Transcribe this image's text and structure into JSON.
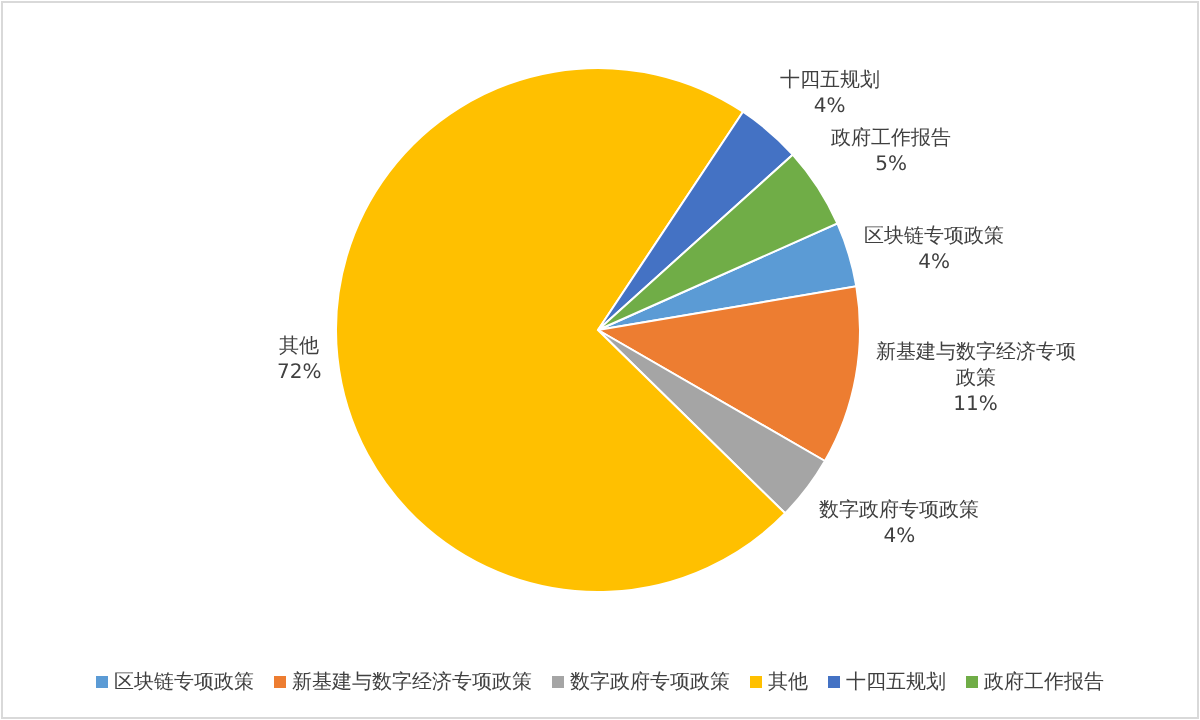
{
  "chart_data": {
    "type": "pie",
    "categories": [
      "区块链专项政策",
      "新基建与数字经济专项政策",
      "数字政府专项政策",
      "其他",
      "十四五规划",
      "政府工作报告"
    ],
    "values": [
      4,
      11,
      4,
      72,
      4,
      5
    ],
    "colors": [
      "#5b9bd5",
      "#ed7d31",
      "#a5a5a5",
      "#ffc000",
      "#4472c4",
      "#70ad47"
    ],
    "value_labels": [
      "4%",
      "11%",
      "4%",
      "72%",
      "4%",
      "5%"
    ],
    "legend": "bottom"
  }
}
